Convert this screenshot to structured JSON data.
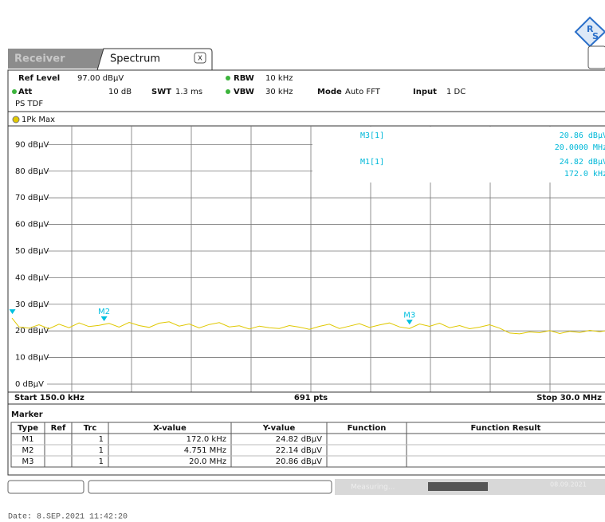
{
  "tabs": {
    "inactive": "Receiver",
    "active": "Spectrum",
    "close": "X"
  },
  "settings": {
    "ref_level_label": "Ref Level",
    "ref_level": "97.00 dBµV",
    "att_label": "Att",
    "att": "10 dB",
    "swt_label": "SWT",
    "swt": "1.3 ms",
    "rbw_label": "RBW",
    "rbw": "10 kHz",
    "vbw_label": "VBW",
    "vbw": "30 kHz",
    "mode_label": "Mode",
    "mode": "Auto FFT",
    "input_label": "Input",
    "input": "1 DC",
    "extra": "PS TDF"
  },
  "readout": [
    {
      "name": "M3[1]",
      "y": "20.86 dBµV",
      "x": "20.0000 MHz"
    },
    {
      "name": "M1[1]",
      "y": "24.82 dBµV",
      "x": "172.0 kHz"
    }
  ],
  "chart_data": {
    "type": "line",
    "xlim": [
      0.15,
      30
    ],
    "ylim": [
      -3,
      97
    ],
    "yticks": [
      {
        "value": 0,
        "label": "0 dBµV"
      },
      {
        "value": 10,
        "label": "10 dBµV"
      },
      {
        "value": 20,
        "label": "20 dBµV"
      },
      {
        "value": 30,
        "label": "30 dBµV"
      },
      {
        "value": 40,
        "label": "40 dBµV"
      },
      {
        "value": 50,
        "label": "50 dBµV"
      },
      {
        "value": 60,
        "label": "60 dBµV"
      },
      {
        "value": 70,
        "label": "70 dBµV"
      },
      {
        "value": 80,
        "label": "80 dBµV"
      },
      {
        "value": 90,
        "label": "90 dBµV"
      }
    ],
    "grid": true,
    "x": [
      0.15,
      0.5,
      1,
      1.5,
      2,
      2.5,
      3,
      3.5,
      4,
      4.5,
      5,
      5.5,
      6,
      6.5,
      7,
      7.5,
      8,
      8.5,
      9,
      9.5,
      10,
      10.5,
      11,
      11.5,
      12,
      12.5,
      13,
      13.5,
      14,
      14.5,
      15,
      15.5,
      16,
      16.5,
      17,
      17.5,
      18,
      18.5,
      19,
      19.5,
      20,
      20.5,
      21,
      21.5,
      22,
      22.5,
      23,
      23.5,
      24,
      24.5,
      25,
      25.5,
      26,
      26.5,
      27,
      27.5,
      28,
      28.5,
      29,
      29.5,
      30
    ],
    "series": [
      {
        "name": "1Pk Max",
        "color": "#e0c800",
        "values": [
          24.8,
          21.5,
          21.0,
          22.3,
          20.8,
          22.5,
          21.2,
          23.0,
          21.6,
          22.1,
          22.8,
          21.4,
          23.2,
          22.0,
          21.3,
          22.9,
          23.4,
          21.8,
          22.6,
          21.1,
          22.4,
          23.1,
          21.5,
          21.9,
          20.7,
          21.8,
          21.2,
          20.9,
          22.0,
          21.4,
          20.6,
          21.7,
          22.5,
          20.9,
          21.8,
          22.7,
          21.3,
          22.2,
          23.0,
          21.5,
          20.9,
          22.6,
          21.7,
          22.9,
          21.2,
          22.0,
          20.8,
          21.4,
          22.3,
          21.0,
          19.2,
          18.9,
          19.6,
          19.3,
          20.1,
          19.0,
          19.8,
          19.4,
          20.2,
          19.7,
          20.3
        ]
      }
    ],
    "marker_color": "#00c0e0",
    "markers": [
      {
        "x": 0.172,
        "y": 24.82
      },
      {
        "x": 4.751,
        "y": 22.14,
        "label": "M2"
      },
      {
        "x": 20.0,
        "y": 20.86,
        "label": "M3"
      }
    ],
    "start": "Start 150.0 kHz",
    "points": "691 pts",
    "stop": "Stop 30.0 MHz"
  },
  "marker_table": {
    "title": "Marker",
    "header": [
      "Type",
      "Ref",
      "Trc",
      "X-value",
      "Y-value",
      "Function",
      "Function Result"
    ],
    "rows": [
      {
        "type": "M1",
        "trc": "1",
        "x": "172.0 kHz",
        "y": "24.82 dBµV"
      },
      {
        "type": "M2",
        "trc": "1",
        "x": "4.751 MHz",
        "y": "22.14 dBµV"
      },
      {
        "type": "M3",
        "trc": "1",
        "x": "20.0 MHz",
        "y": "20.86 dBµV"
      }
    ]
  },
  "status": {
    "state": "Measuring...",
    "date": "08.09.2021"
  },
  "footer": "Date: 8.SEP.2021  11:42:20"
}
